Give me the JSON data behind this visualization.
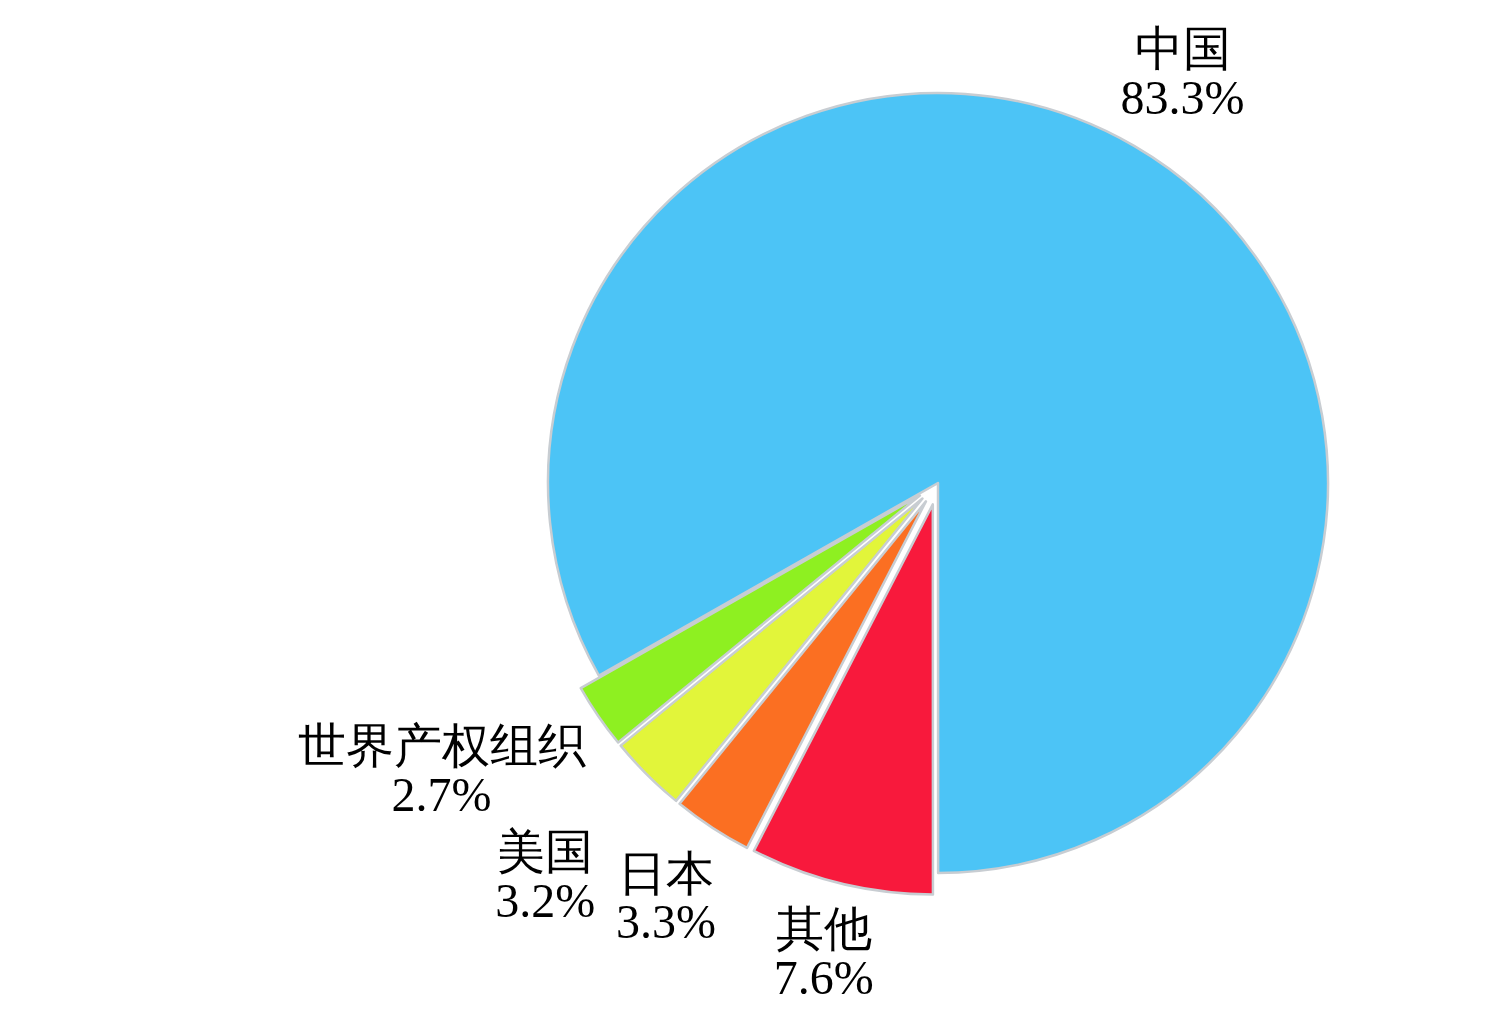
{
  "chart_data": {
    "type": "pie",
    "categories": [
      "中国",
      "其他",
      "日本",
      "美国",
      "世界产权组织"
    ],
    "values": [
      83.3,
      7.6,
      3.3,
      3.2,
      2.7
    ],
    "value_labels": [
      "83.3%",
      "7.6%",
      "3.3%",
      "3.2%",
      "2.7%"
    ],
    "colors": [
      "#4cc4f6",
      "#f8193c",
      "#fb6f22",
      "#e2f53a",
      "#8ef021"
    ]
  }
}
